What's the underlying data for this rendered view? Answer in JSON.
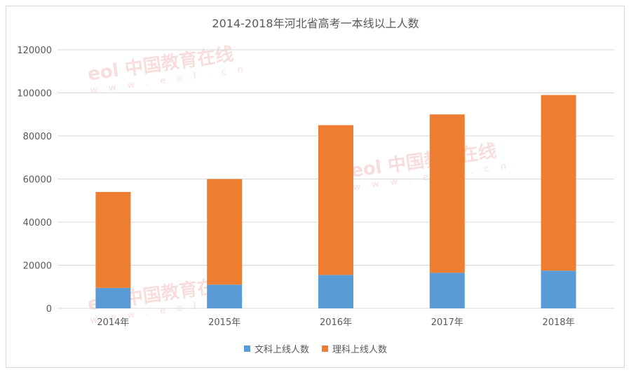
{
  "chart_data": {
    "type": "bar",
    "stacked": true,
    "title": "2014-2018年河北省高考一本线以上人数",
    "categories": [
      "2014年",
      "2015年",
      "2016年",
      "2017年",
      "2018年"
    ],
    "series": [
      {
        "name": "文科上线人数",
        "values": [
          9500,
          11000,
          15500,
          16500,
          17500
        ],
        "color": "#5b9bd5"
      },
      {
        "name": "理科上线人数",
        "values": [
          44500,
          49000,
          69500,
          73500,
          81500
        ],
        "color": "#ed7d31"
      }
    ],
    "ylim": [
      0,
      120000
    ],
    "yticks": [
      "0",
      "20000",
      "40000",
      "60000",
      "80000",
      "100000",
      "120000"
    ],
    "grid": true,
    "legend_position": "bottom"
  },
  "watermark": {
    "logo": "eol",
    "name": "中国教育在线",
    "url": "w w w . e o l . c n"
  }
}
